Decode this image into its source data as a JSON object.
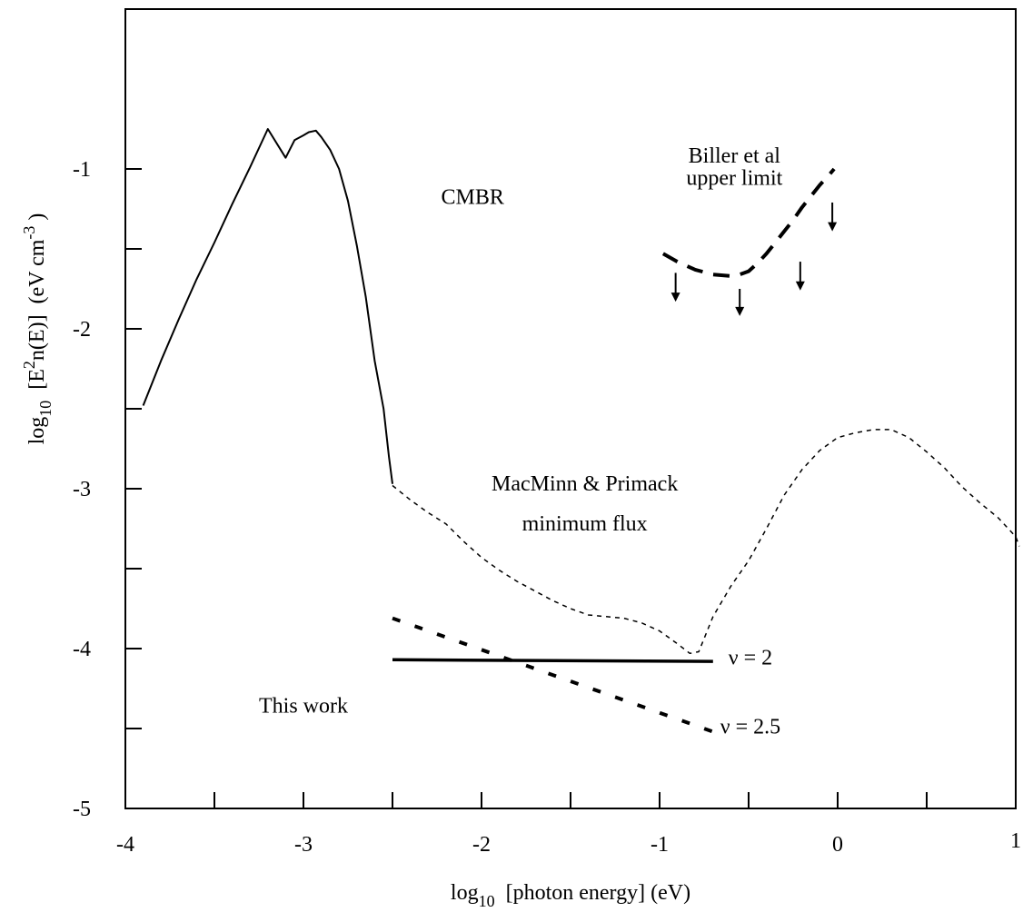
{
  "chart_data": {
    "type": "line",
    "xlim": [
      -4,
      1
    ],
    "ylim": [
      -5,
      0
    ],
    "xticks": [
      -4,
      -3,
      -2,
      -1,
      0,
      1
    ],
    "xtick_labels": [
      "-4",
      "-3",
      "-2",
      "-1",
      "0",
      "1"
    ],
    "xminor": [
      -3.5,
      -2.5,
      -1.5,
      -0.5,
      0.5
    ],
    "yticks": [
      -5,
      -4,
      -3,
      -2,
      -1
    ],
    "ytick_labels": [
      "-5",
      "-4",
      "-3",
      "-2",
      "-1"
    ],
    "yminor": [
      -4.5,
      -3.5,
      -2.5,
      -1.5
    ],
    "xlabel": {
      "pre": "log",
      "sub": "10",
      "post": "  [photon energy] (eV)"
    },
    "ylabel": {
      "p1": "log",
      "p1sub": "10",
      "p2": "  [E",
      "p2sup": "2",
      "p3": "n(E)]  (eV cm",
      "p3sup": "-3",
      "p4": " )"
    },
    "grid": false,
    "series": [
      {
        "name": "CMBR",
        "style": "solid",
        "stroke_width": 2,
        "x": [
          -3.9,
          -3.8,
          -3.7,
          -3.6,
          -3.5,
          -3.4,
          -3.3,
          -3.2,
          -3.1,
          -3.05,
          -3.0,
          -2.97,
          -2.93,
          -2.9,
          -2.85,
          -2.8,
          -2.75,
          -2.7,
          -2.65,
          -2.6,
          -2.55,
          -2.52,
          -2.5
        ],
        "y": [
          -2.48,
          -2.2,
          -1.94,
          -1.69,
          -1.46,
          -1.22,
          -0.99,
          -0.75,
          -0.93,
          -0.82,
          -0.79,
          -0.77,
          -0.76,
          -0.8,
          -0.88,
          -1.0,
          -1.2,
          -1.48,
          -1.8,
          -2.2,
          -2.5,
          -2.8,
          -2.97
        ]
      },
      {
        "name": "MacMinn & Primack minimum flux",
        "style": "short-dash",
        "stroke_width": 1.5,
        "x": [
          -2.5,
          -2.4,
          -2.3,
          -2.2,
          -2.1,
          -2.0,
          -1.9,
          -1.8,
          -1.7,
          -1.6,
          -1.5,
          -1.4,
          -1.3,
          -1.2,
          -1.1,
          -1.0,
          -0.9,
          -0.83,
          -0.78,
          -0.7,
          -0.6,
          -0.5,
          -0.4,
          -0.3,
          -0.2,
          -0.1,
          0.0,
          0.1,
          0.2,
          0.3,
          0.4,
          0.5,
          0.6,
          0.7,
          0.8,
          0.9,
          1.0,
          1.02
        ],
        "y": [
          -2.98,
          -3.07,
          -3.15,
          -3.22,
          -3.33,
          -3.43,
          -3.51,
          -3.58,
          -3.64,
          -3.7,
          -3.75,
          -3.79,
          -3.8,
          -3.81,
          -3.84,
          -3.89,
          -3.97,
          -4.03,
          -4.02,
          -3.8,
          -3.61,
          -3.45,
          -3.25,
          -3.04,
          -2.88,
          -2.76,
          -2.68,
          -2.65,
          -2.63,
          -2.63,
          -2.68,
          -2.77,
          -2.87,
          -2.99,
          -3.09,
          -3.18,
          -3.3,
          -3.36
        ]
      },
      {
        "name": "Biller et al upper limit",
        "style": "long-dash",
        "stroke_width": 4,
        "x": [
          -0.98,
          -0.9,
          -0.8,
          -0.7,
          -0.6,
          -0.55,
          -0.5,
          -0.45,
          -0.4,
          -0.35,
          -0.3,
          -0.25,
          -0.2,
          -0.15,
          -0.1,
          -0.05,
          -0.02
        ],
        "y": [
          -1.53,
          -1.58,
          -1.63,
          -1.66,
          -1.67,
          -1.66,
          -1.64,
          -1.59,
          -1.53,
          -1.46,
          -1.39,
          -1.32,
          -1.24,
          -1.17,
          -1.1,
          -1.04,
          -1.0
        ]
      },
      {
        "name": "This work ν = 2",
        "style": "solid",
        "stroke_width": 3.5,
        "x": [
          -2.5,
          -0.7
        ],
        "y": [
          -4.07,
          -4.08
        ]
      },
      {
        "name": "This work ν = 2.5",
        "style": "dotted-dash",
        "stroke_width": 4,
        "x": [
          -2.5,
          -0.7
        ],
        "y": [
          -3.81,
          -4.52
        ]
      }
    ],
    "upper_limit_arrows": [
      {
        "x": -0.91,
        "y_from": -1.65,
        "y_to": -1.83
      },
      {
        "x": -0.55,
        "y_from": -1.75,
        "y_to": -1.92
      },
      {
        "x": -0.21,
        "y_from": -1.58,
        "y_to": -1.76
      },
      {
        "x": -0.03,
        "y_from": -1.21,
        "y_to": -1.39
      }
    ],
    "annotations": [
      {
        "id": "cmbr",
        "text": "CMBR",
        "x": -2.05,
        "y": -1.22
      },
      {
        "id": "biller1",
        "text": "Biller et al",
        "x": -0.58,
        "y": -0.96
      },
      {
        "id": "biller2",
        "text": "upper limit",
        "x": -0.58,
        "y": -1.1
      },
      {
        "id": "macminn1",
        "text": "MacMinn & Primack",
        "x": -1.42,
        "y": -3.01
      },
      {
        "id": "macminn2",
        "text": "minimum flux",
        "x": -1.42,
        "y": -3.26
      },
      {
        "id": "nu2",
        "text": "ν = 2",
        "x": -0.49,
        "y": -4.1
      },
      {
        "id": "nu25",
        "text": "ν = 2.5",
        "x": -0.49,
        "y": -4.53
      },
      {
        "id": "thiswork",
        "text": "This work",
        "x": -3.0,
        "y": -4.4
      }
    ]
  }
}
